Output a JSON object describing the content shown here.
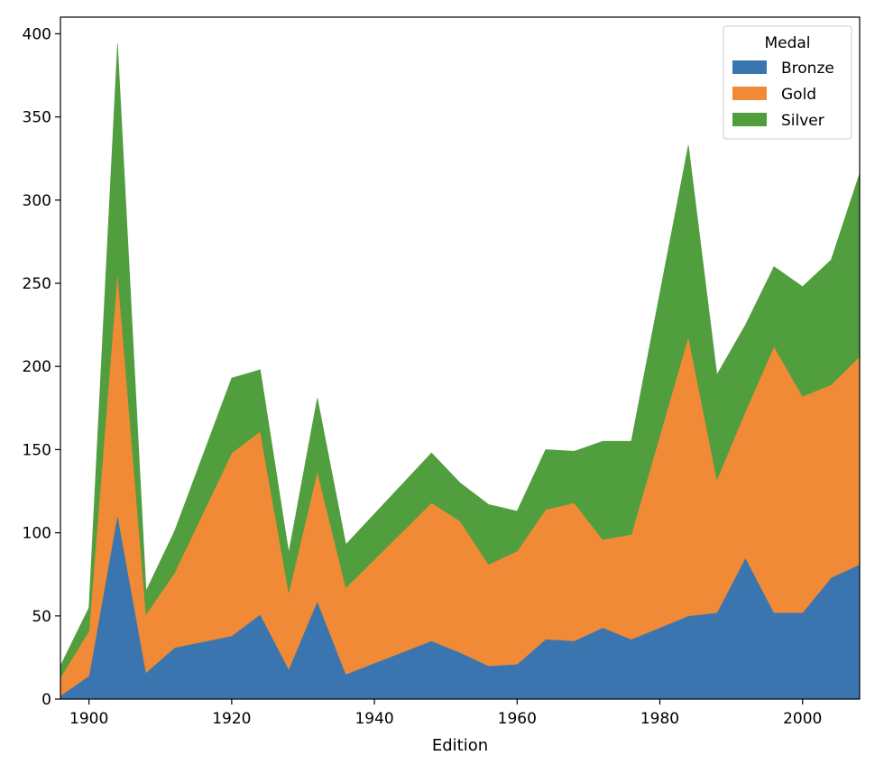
{
  "chart_data": {
    "type": "area",
    "stacked": true,
    "xlabel": "Edition",
    "ylabel": "",
    "xlim": [
      1896,
      2008
    ],
    "ylim": [
      0,
      410
    ],
    "x_ticks": [
      1900,
      1920,
      1940,
      1960,
      1980,
      2000
    ],
    "y_ticks": [
      0,
      50,
      100,
      150,
      200,
      250,
      300,
      350,
      400
    ],
    "grid": false,
    "legend": {
      "title": "Medal",
      "placement": "top-right"
    },
    "x": [
      1896,
      1900,
      1904,
      1908,
      1912,
      1920,
      1924,
      1928,
      1932,
      1936,
      1948,
      1952,
      1956,
      1960,
      1964,
      1968,
      1972,
      1976,
      1984,
      1988,
      1992,
      1996,
      2000,
      2004,
      2008
    ],
    "series": [
      {
        "name": "Bronze",
        "color": "#3a75b0",
        "values": [
          2,
          14,
          111,
          16,
          31,
          38,
          51,
          18,
          59,
          15,
          35,
          28,
          20,
          21,
          36,
          35,
          43,
          36,
          50,
          52,
          85,
          52,
          52,
          73,
          81
        ]
      },
      {
        "name": "Gold",
        "color": "#f08a36",
        "values": [
          11,
          27,
          146,
          35,
          45,
          110,
          110,
          46,
          78,
          52,
          83,
          79,
          61,
          68,
          78,
          83,
          53,
          63,
          168,
          80,
          88,
          160,
          130,
          116,
          125
        ]
      },
      {
        "name": "Silver",
        "color": "#519e3e",
        "values": [
          7,
          14,
          137,
          14,
          25,
          45,
          37,
          24,
          44,
          26,
          30,
          23,
          36,
          24,
          36,
          31,
          59,
          56,
          115,
          63,
          52,
          48,
          66,
          75,
          110
        ]
      }
    ]
  }
}
